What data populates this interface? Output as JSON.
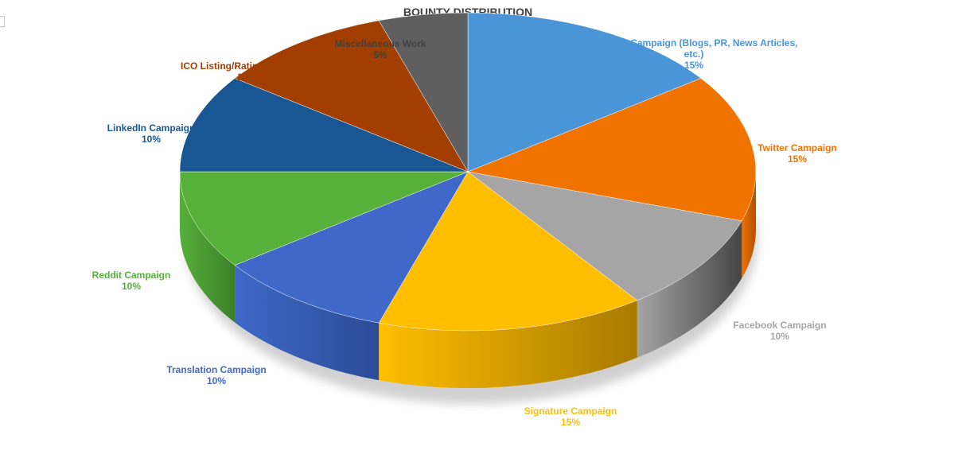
{
  "chart_data": {
    "type": "pie",
    "style": "3d-pie",
    "title": "BOUNTY DISTRIBUTION",
    "slices": [
      {
        "label_lines": [
          "Creative Campaign (Blogs, PR, News Articles,",
          "etc.)"
        ],
        "pct_label": "15%",
        "value": 15,
        "color": "#4a95d8",
        "side_color": "#2f6aa6"
      },
      {
        "label_lines": [
          "Twitter Campaign"
        ],
        "pct_label": "15%",
        "value": 15,
        "color": "#f07300",
        "side_color": "#b04f00"
      },
      {
        "label_lines": [
          "Facebook Campaign"
        ],
        "pct_label": "10%",
        "value": 10,
        "color": "#a5a5a5",
        "side_color": "#454545"
      },
      {
        "label_lines": [
          "Signature Campaign"
        ],
        "pct_label": "15%",
        "value": 15,
        "color": "#ffbe00",
        "side_color": "#a87a00"
      },
      {
        "label_lines": [
          "Translation Campaign"
        ],
        "pct_label": "10%",
        "value": 10,
        "color": "#3f68c8",
        "side_color": "#2b4c96"
      },
      {
        "label_lines": [
          "Reddit Campaign"
        ],
        "pct_label": "10%",
        "value": 10,
        "color": "#56b03a",
        "side_color": "#3a8028"
      },
      {
        "label_lines": [
          "LinkedIn Campaign"
        ],
        "pct_label": "10%",
        "value": 10,
        "color": "#195794",
        "side_color": "#103c68"
      },
      {
        "label_lines": [
          "ICO Listing/Rating Campaign"
        ],
        "pct_label": "10%",
        "value": 10,
        "color": "#a23f00",
        "side_color": "#702c00"
      },
      {
        "label_lines": [
          "Miscellaneous Work"
        ],
        "pct_label": "5%",
        "value": 5,
        "color": "#5f5f5f",
        "side_color": "#3a3a3a"
      }
    ],
    "label_colors": [
      "#4a95d8",
      "#f07300",
      "#a5a5a5",
      "#ffbe00",
      "#3f68c8",
      "#56b03a",
      "#195794",
      "#a23f00",
      "#404040"
    ]
  }
}
